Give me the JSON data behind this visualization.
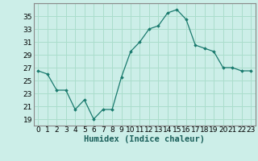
{
  "x": [
    0,
    1,
    2,
    3,
    4,
    5,
    6,
    7,
    8,
    9,
    10,
    11,
    12,
    13,
    14,
    15,
    16,
    17,
    18,
    19,
    20,
    21,
    22,
    23
  ],
  "y": [
    26.5,
    26.0,
    23.5,
    23.5,
    20.5,
    22.0,
    19.0,
    20.5,
    20.5,
    25.5,
    29.5,
    31.0,
    33.0,
    33.5,
    35.5,
    36.0,
    34.5,
    30.5,
    30.0,
    29.5,
    27.0,
    27.0,
    26.5,
    26.5
  ],
  "line_color": "#1a7a6e",
  "marker_color": "#1a7a6e",
  "bg_color": "#cceee8",
  "grid_color": "#aaddcc",
  "spine_color": "#888888",
  "xlabel": "Humidex (Indice chaleur)",
  "xlim": [
    -0.5,
    23.5
  ],
  "ylim": [
    18,
    37
  ],
  "yticks": [
    19,
    21,
    23,
    25,
    27,
    29,
    31,
    33,
    35
  ],
  "xticks": [
    0,
    1,
    2,
    3,
    4,
    5,
    6,
    7,
    8,
    9,
    10,
    11,
    12,
    13,
    14,
    15,
    16,
    17,
    18,
    19,
    20,
    21,
    22,
    23
  ],
  "label_fontsize": 7.5,
  "tick_fontsize": 6.5
}
